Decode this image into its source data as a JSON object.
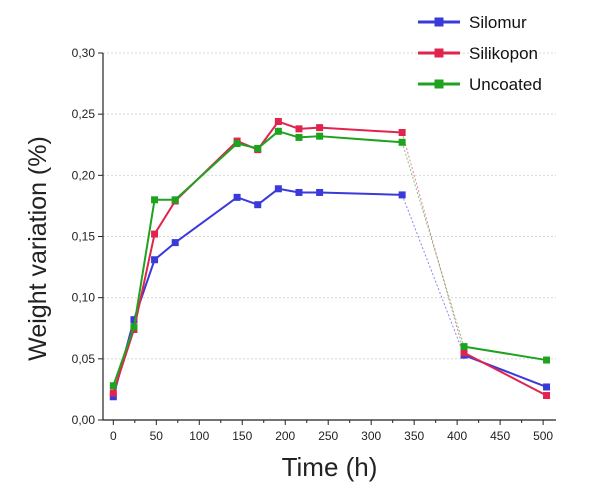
{
  "chart_data": {
    "type": "line",
    "xlabel": "Time (h)",
    "ylabel": "Weight variation (%)",
    "xlim": [
      -12,
      515
    ],
    "ylim": [
      0,
      0.3
    ],
    "x_ticks": [
      "0",
      "50",
      "100",
      "150",
      "200",
      "250",
      "300",
      "350",
      "400",
      "450",
      "500"
    ],
    "y_ticks": [
      "0,00",
      "0,05",
      "0,10",
      "0,15",
      "0,20",
      "0,25",
      "0,30"
    ],
    "grid": true,
    "legend_position": "top-right",
    "series": [
      {
        "name": "Silomur",
        "color": "#3a3ad8",
        "x": [
          0,
          24,
          48,
          72,
          144,
          168,
          192,
          216,
          240,
          336,
          408,
          504
        ],
        "y": [
          0.019,
          0.082,
          0.131,
          0.145,
          0.182,
          0.176,
          0.189,
          0.186,
          0.186,
          0.184,
          0.053,
          0.027
        ]
      },
      {
        "name": "Silikopon",
        "color": "#e0244e",
        "x": [
          0,
          24,
          48,
          72,
          144,
          168,
          192,
          216,
          240,
          336,
          408,
          504
        ],
        "y": [
          0.022,
          0.074,
          0.152,
          0.179,
          0.228,
          0.221,
          0.244,
          0.238,
          0.239,
          0.235,
          0.055,
          0.02
        ]
      },
      {
        "name": "Uncoated",
        "color": "#1fa31f",
        "x": [
          0,
          24,
          48,
          72,
          144,
          168,
          192,
          216,
          240,
          336,
          408,
          504
        ],
        "y": [
          0.028,
          0.076,
          0.18,
          0.18,
          0.226,
          0.222,
          0.236,
          0.231,
          0.232,
          0.227,
          0.06,
          0.049
        ]
      }
    ]
  }
}
